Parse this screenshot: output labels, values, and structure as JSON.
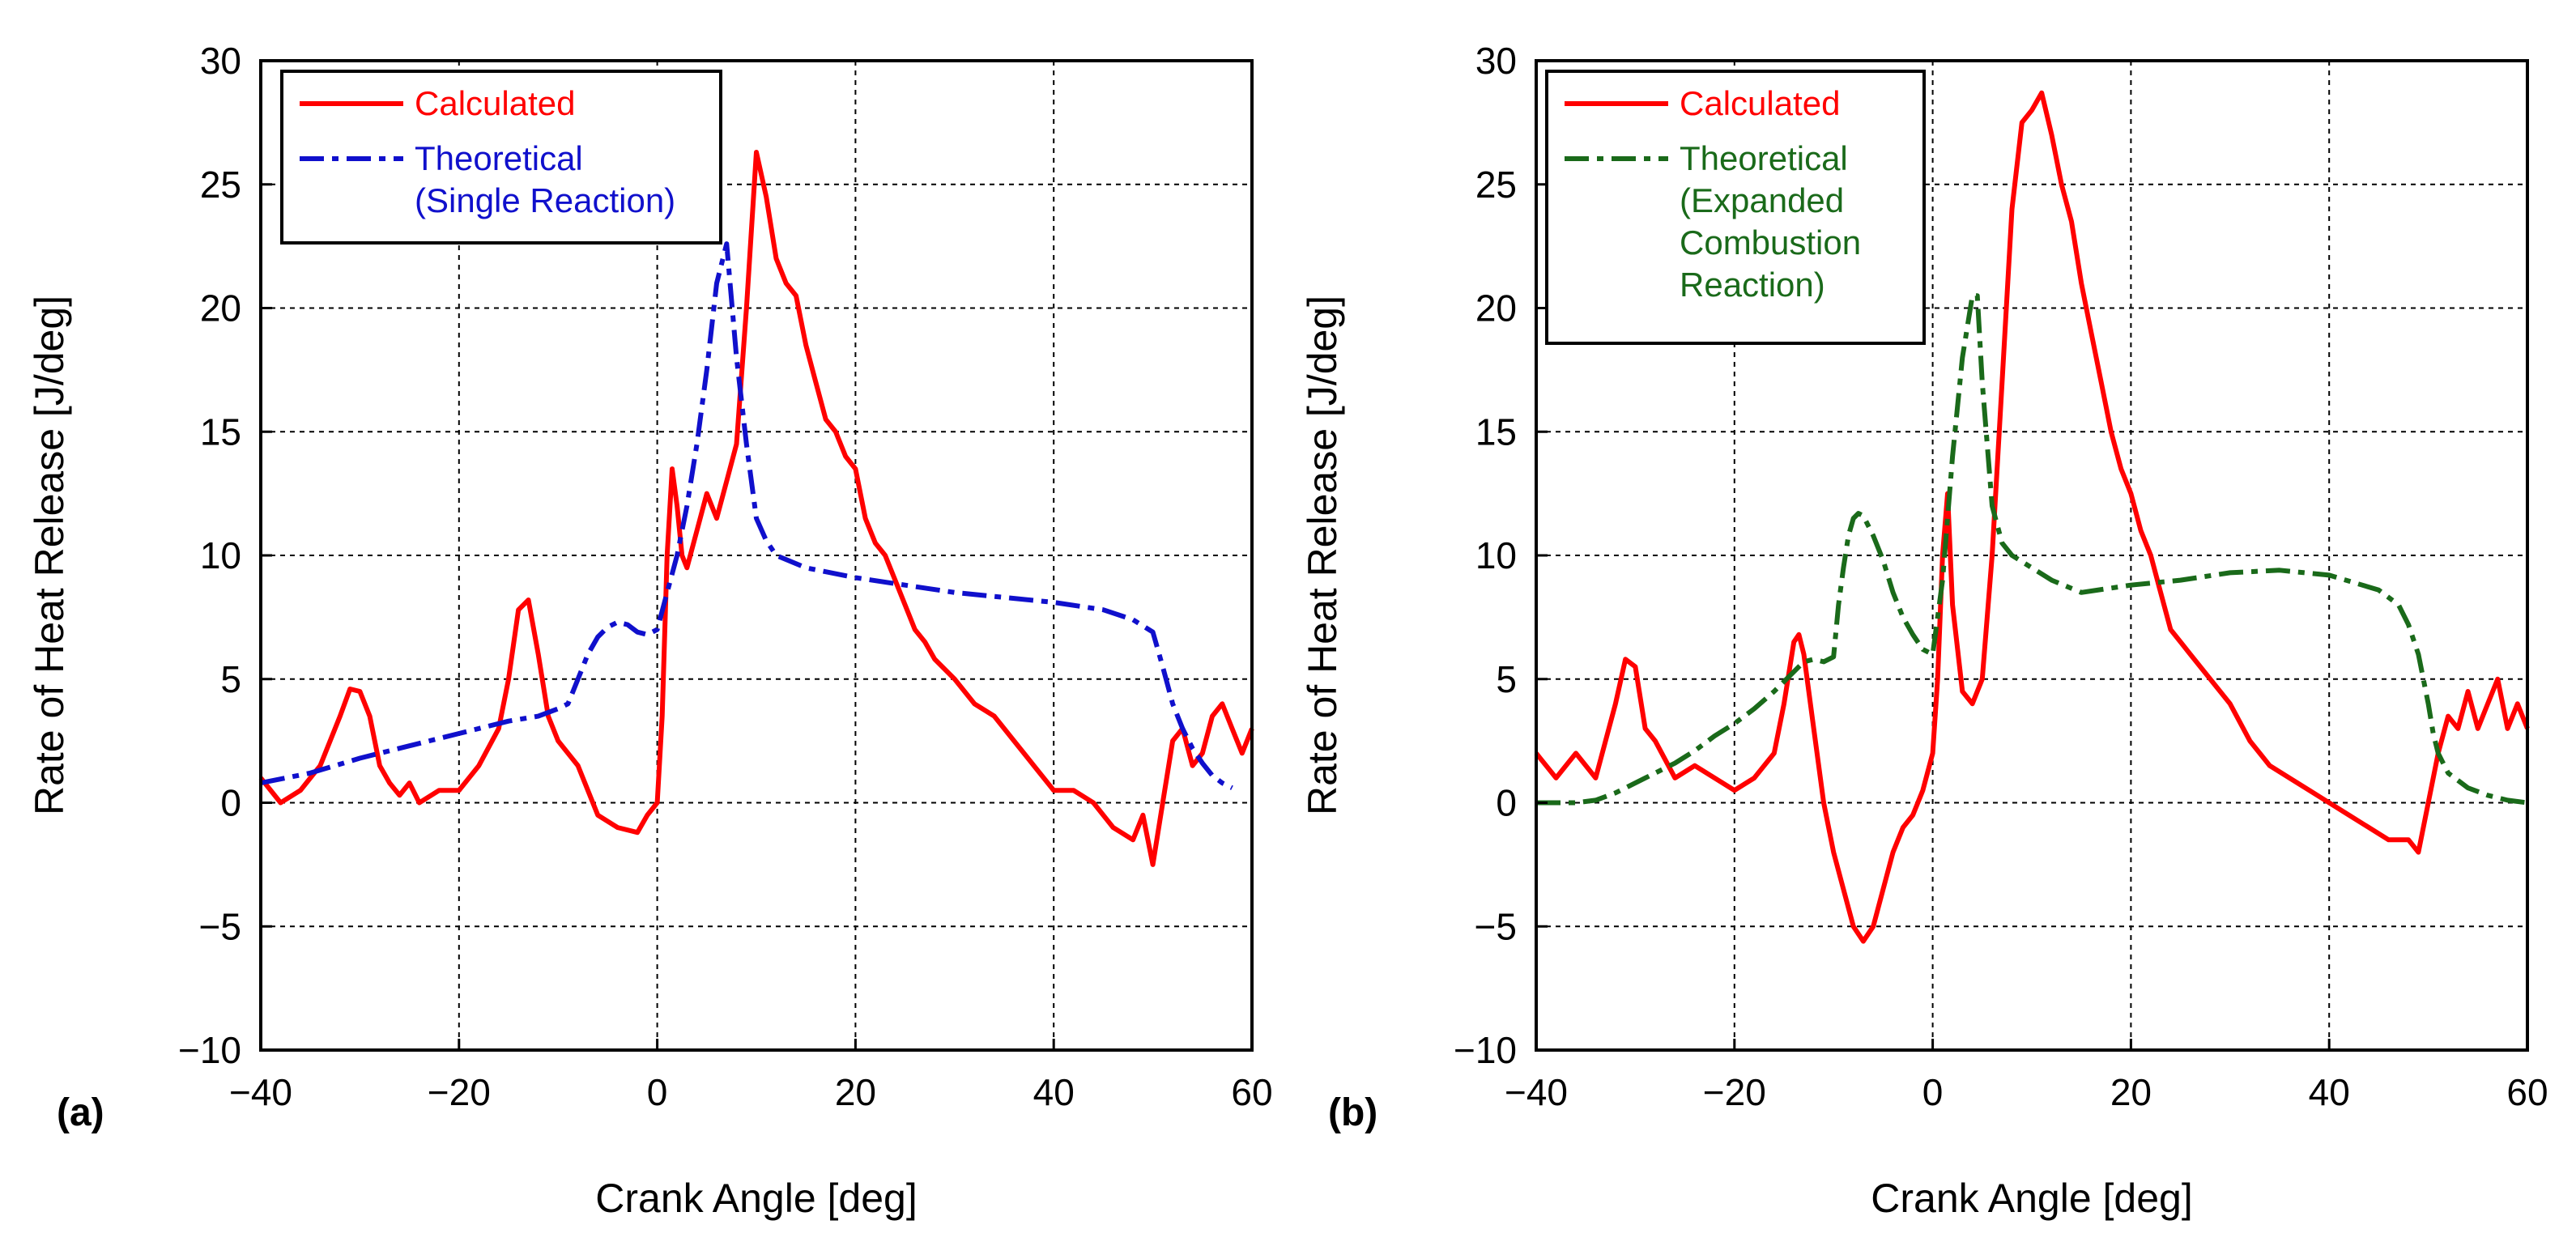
{
  "chart_data": [
    {
      "type": "line",
      "panel_label": "(a)",
      "xlabel": "Crank Angle [deg]",
      "ylabel": "Rate of Heat Release [J/deg]",
      "xlim": [
        -40,
        60
      ],
      "ylim": [
        -10,
        30
      ],
      "xticks": [
        -40,
        -20,
        0,
        20,
        40,
        60
      ],
      "xtick_labels": [
        "−40",
        "−20",
        "0",
        "20",
        "40",
        "60"
      ],
      "yticks": [
        -10,
        -5,
        0,
        5,
        10,
        15,
        20,
        25,
        30
      ],
      "ytick_labels": [
        "−10",
        "−5",
        "0",
        "5",
        "10",
        "15",
        "20",
        "25",
        "30"
      ],
      "grid": true,
      "legend_position": "top-left",
      "series": [
        {
          "name": "Calculated",
          "legend_lines": [
            "Calculated"
          ],
          "color": "#ff0000",
          "style": "solid",
          "x": [
            -40,
            -38,
            -36,
            -34,
            -32,
            -31,
            -30,
            -29,
            -28,
            -27,
            -26,
            -25,
            -24,
            -22,
            -20,
            -18,
            -16,
            -15,
            -14,
            -13,
            -12,
            -11,
            -10,
            -8,
            -6,
            -4,
            -2,
            -1,
            0,
            0.5,
            1,
            1.5,
            2,
            2.5,
            3,
            4,
            5,
            6,
            7,
            8,
            9,
            10,
            11,
            12,
            13,
            14,
            15,
            16,
            17,
            18,
            19,
            20,
            21,
            22,
            23,
            24,
            25,
            26,
            27,
            28,
            30,
            32,
            34,
            36,
            38,
            40,
            42,
            44,
            46,
            48,
            49,
            50,
            51,
            52,
            53,
            54,
            55,
            56,
            57,
            58,
            59,
            60
          ],
          "y": [
            1,
            0,
            0.5,
            1.5,
            3.5,
            4.6,
            4.5,
            3.5,
            1.5,
            0.8,
            0.3,
            0.8,
            0,
            0.5,
            0.5,
            1.5,
            3,
            5,
            7.8,
            8.2,
            6,
            3.5,
            2.5,
            1.5,
            -0.5,
            -1,
            -1.2,
            -0.5,
            0,
            3.5,
            10,
            13.5,
            12,
            10,
            9.5,
            11,
            12.5,
            11.5,
            13,
            14.5,
            20,
            26.3,
            24.5,
            22,
            21,
            20.5,
            18.5,
            17,
            15.5,
            15,
            14,
            13.5,
            11.5,
            10.5,
            10,
            9,
            8,
            7,
            6.5,
            5.8,
            5,
            4,
            3.5,
            2.5,
            1.5,
            0.5,
            0.5,
            0,
            -1,
            -1.5,
            -0.5,
            -2.5,
            0,
            2.5,
            3,
            1.5,
            2,
            3.5,
            4,
            3,
            2,
            3
          ]
        },
        {
          "name": "Theoretical (Single Reaction)",
          "legend_lines": [
            "Theoretical",
            "(Single Reaction)"
          ],
          "color": "#1010cc",
          "style": "dash-dot",
          "x": [
            -40,
            -35,
            -30,
            -25,
            -20,
            -15,
            -12,
            -10,
            -9,
            -8,
            -7,
            -6,
            -5,
            -4,
            -3,
            -2,
            -1,
            0,
            1,
            2,
            3,
            4,
            5,
            6,
            7,
            8,
            9,
            10,
            11,
            12,
            15,
            20,
            25,
            30,
            35,
            40,
            45,
            48,
            50,
            51,
            52,
            53,
            54,
            55,
            56,
            57,
            58
          ],
          "y": [
            0.8,
            1.2,
            1.8,
            2.3,
            2.8,
            3.3,
            3.5,
            3.8,
            4,
            5,
            6,
            6.7,
            7.1,
            7.3,
            7.2,
            6.9,
            6.8,
            7,
            8.5,
            10,
            12,
            14.5,
            17.5,
            21,
            22.6,
            18,
            14.5,
            11.5,
            10.6,
            10,
            9.5,
            9.1,
            8.8,
            8.5,
            8.3,
            8.1,
            7.8,
            7.4,
            6.9,
            5.5,
            4,
            3,
            2.2,
            1.6,
            1.1,
            0.8,
            0.6
          ]
        }
      ]
    },
    {
      "type": "line",
      "panel_label": "(b)",
      "xlabel": "Crank Angle [deg]",
      "ylabel": "Rate of Heat Release [J/deg]",
      "xlim": [
        -40,
        60
      ],
      "ylim": [
        -10,
        30
      ],
      "xticks": [
        -40,
        -20,
        0,
        20,
        40,
        60
      ],
      "xtick_labels": [
        "−40",
        "−20",
        "0",
        "20",
        "40",
        "60"
      ],
      "yticks": [
        -10,
        -5,
        0,
        5,
        10,
        15,
        20,
        25,
        30
      ],
      "ytick_labels": [
        "−10",
        "−5",
        "0",
        "5",
        "10",
        "15",
        "20",
        "25",
        "30"
      ],
      "grid": true,
      "legend_position": "top-left",
      "series": [
        {
          "name": "Calculated",
          "legend_lines": [
            "Calculated"
          ],
          "color": "#ff0000",
          "style": "solid",
          "x": [
            -40,
            -38,
            -36,
            -34,
            -32,
            -31,
            -30,
            -29,
            -28,
            -26,
            -24,
            -22,
            -20,
            -18,
            -16,
            -15,
            -14,
            -13.5,
            -13,
            -12,
            -11,
            -10,
            -9,
            -8,
            -7,
            -6,
            -5,
            -4,
            -3,
            -2,
            -1,
            0,
            0.5,
            1,
            1.5,
            2,
            3,
            4,
            5,
            6,
            7,
            8,
            9,
            10,
            11,
            12,
            13,
            14,
            15,
            16,
            17,
            18,
            19,
            20,
            21,
            22,
            23,
            24,
            25,
            26,
            28,
            30,
            32,
            34,
            36,
            38,
            40,
            42,
            44,
            46,
            48,
            49,
            50,
            51,
            52,
            53,
            54,
            55,
            56,
            57,
            58,
            59,
            60
          ],
          "y": [
            2,
            1,
            2,
            1,
            4,
            5.8,
            5.5,
            3,
            2.5,
            1,
            1.5,
            1,
            0.5,
            1,
            2,
            4,
            6.5,
            6.8,
            6,
            3,
            0,
            -2,
            -3.5,
            -5,
            -5.6,
            -5,
            -3.5,
            -2,
            -1,
            -0.5,
            0.5,
            2,
            5,
            10,
            12.5,
            8,
            4.5,
            4,
            5,
            10,
            17,
            24,
            27.5,
            28,
            28.7,
            27,
            25,
            23.5,
            21,
            19,
            17,
            15,
            13.5,
            12.5,
            11,
            10,
            8.5,
            7,
            6.5,
            6,
            5,
            4,
            2.5,
            1.5,
            1,
            0.5,
            0,
            -0.5,
            -1,
            -1.5,
            -1.5,
            -2,
            0,
            2,
            3.5,
            3,
            4.5,
            3,
            4,
            5,
            3,
            4,
            3
          ]
        },
        {
          "name": "Theoretical (Expanded Combustion Reaction)",
          "legend_lines": [
            "Theoretical",
            "(Expanded",
            "Combustion",
            "Reaction)"
          ],
          "color": "#1a6a1a",
          "style": "dash-dot",
          "x": [
            -40,
            -38,
            -36,
            -34,
            -32,
            -30,
            -28,
            -26,
            -24,
            -22,
            -20,
            -18,
            -16,
            -14,
            -13,
            -12,
            -11,
            -10,
            -9.5,
            -9,
            -8.5,
            -8,
            -7.5,
            -7,
            -6,
            -5,
            -4,
            -3,
            -2,
            -1,
            0,
            1,
            2,
            3,
            4,
            4.5,
            5,
            6,
            7,
            8,
            10,
            12,
            15,
            20,
            25,
            30,
            35,
            40,
            45,
            47,
            48,
            49,
            50,
            50.5,
            51,
            52,
            54,
            56,
            58,
            60
          ],
          "y": [
            0,
            0,
            0,
            0.1,
            0.4,
            0.8,
            1.2,
            1.6,
            2.1,
            2.7,
            3.2,
            3.8,
            4.5,
            5.3,
            5.7,
            5.8,
            5.7,
            5.9,
            8,
            9.5,
            10.8,
            11.5,
            11.7,
            11.6,
            10.8,
            9.8,
            8.5,
            7.5,
            6.8,
            6.2,
            6,
            9,
            14,
            18,
            20.5,
            20.5,
            17,
            12,
            10.5,
            10,
            9.5,
            9,
            8.5,
            8.8,
            9,
            9.3,
            9.4,
            9.2,
            8.6,
            8,
            7.2,
            6,
            4,
            2.8,
            2,
            1.2,
            0.6,
            0.3,
            0.1,
            0
          ]
        }
      ]
    }
  ]
}
